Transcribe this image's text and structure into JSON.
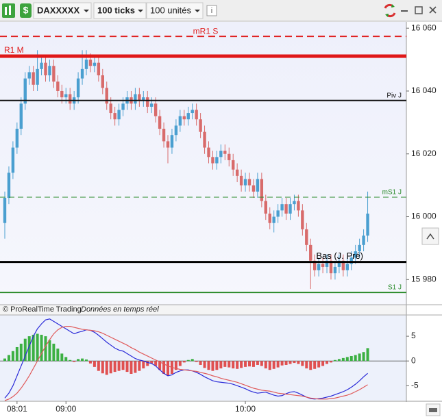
{
  "toolbar": {
    "instrument": "DAXXXXX",
    "interval": "100 ticks",
    "units": "100 unités"
  },
  "footer": {
    "copyright": "© ProRealTime Trading",
    "status": "Données en temps réel"
  },
  "chart_data": [
    {
      "type": "candlestick",
      "ylim": [
        15972,
        16062
      ],
      "yticks": [
        {
          "value": 16060,
          "label": "16 060"
        },
        {
          "value": 16040,
          "label": "16 040"
        },
        {
          "value": 16020,
          "label": "16 020"
        },
        {
          "value": 16000,
          "label": "16 000"
        },
        {
          "value": 15980,
          "label": "15 980"
        }
      ],
      "up_color": "#4a9fd0",
      "down_color": "#d86b6b",
      "open": [
        15998,
        16006,
        16014,
        16022,
        16028,
        16036,
        16044,
        16046,
        16042,
        16047,
        16049,
        16045,
        16048,
        16043,
        16040,
        16038,
        16039,
        16036,
        16038,
        16044,
        16047,
        16050,
        16048,
        16049,
        16045,
        16041,
        16036,
        16033,
        16031,
        16034,
        16036,
        16038,
        16036,
        16039,
        16037,
        16038,
        16035,
        16036,
        16032,
        16028,
        16024,
        16022,
        16026,
        16029,
        16032,
        16031,
        16033,
        16034,
        16031,
        16027,
        16022,
        16019,
        16017,
        16019,
        16021,
        16020,
        16018,
        16015,
        16013,
        16010,
        16012,
        16010,
        16008,
        16012,
        16005,
        16001,
        15998,
        16000,
        16002,
        16004,
        16001,
        16004,
        16005,
        16002,
        15996,
        15991,
        15986,
        15983,
        15985,
        15984,
        15986,
        15982,
        15984,
        15986,
        15983,
        15985,
        15987,
        15989,
        15991,
        15994
      ],
      "high": [
        16008,
        16016,
        16024,
        16030,
        16038,
        16046,
        16048,
        16048,
        16053,
        16051,
        16051,
        16050,
        16050,
        16045,
        16042,
        16041,
        16041,
        16040,
        16046,
        16053,
        16053,
        16052,
        16051,
        16051,
        16047,
        16043,
        16038,
        16035,
        16036,
        16038,
        16040,
        16040,
        16041,
        16041,
        16040,
        16040,
        16038,
        16038,
        16034,
        16030,
        16026,
        16028,
        16031,
        16034,
        16034,
        16035,
        16036,
        16036,
        16033,
        16029,
        16024,
        16021,
        16021,
        16023,
        16023,
        16022,
        16020,
        16017,
        16015,
        16014,
        16014,
        16012,
        16014,
        16014,
        16007,
        16003,
        16002,
        16004,
        16006,
        16006,
        16006,
        16007,
        16007,
        16004,
        15998,
        15993,
        15988,
        15987,
        15987,
        15988,
        15988,
        15986,
        15988,
        15988,
        15987,
        15989,
        15991,
        15993,
        15996,
        16008
      ],
      "low": [
        15993,
        16004,
        16012,
        16020,
        16026,
        16034,
        16042,
        16040,
        16040,
        16045,
        16043,
        16043,
        16041,
        16038,
        16036,
        16036,
        16034,
        16034,
        16036,
        16042,
        16045,
        16046,
        16046,
        16043,
        16039,
        16034,
        16031,
        16029,
        16029,
        16032,
        16034,
        16034,
        16034,
        16035,
        16035,
        16033,
        16033,
        16030,
        16026,
        16022,
        16017,
        16020,
        16024,
        16027,
        16029,
        16029,
        16031,
        16029,
        16025,
        16020,
        16017,
        16015,
        16015,
        16017,
        16018,
        16016,
        16013,
        16011,
        16008,
        16008,
        16008,
        16006,
        16006,
        16003,
        15999,
        15996,
        15995,
        15998,
        16000,
        15999,
        15999,
        16002,
        16000,
        15994,
        15989,
        15977,
        15981,
        15981,
        15982,
        15982,
        15980,
        15980,
        15982,
        15981,
        15981,
        15983,
        15985,
        15987,
        15989,
        15992
      ],
      "close": [
        16006,
        16014,
        16022,
        16028,
        16036,
        16044,
        16046,
        16042,
        16047,
        16049,
        16045,
        16048,
        16043,
        16040,
        16038,
        16039,
        16036,
        16038,
        16044,
        16047,
        16050,
        16048,
        16049,
        16045,
        16041,
        16036,
        16033,
        16031,
        16034,
        16036,
        16038,
        16036,
        16039,
        16037,
        16038,
        16035,
        16036,
        16032,
        16028,
        16024,
        16022,
        16026,
        16029,
        16032,
        16031,
        16033,
        16034,
        16031,
        16027,
        16022,
        16019,
        16017,
        16019,
        16021,
        16020,
        16018,
        16015,
        16013,
        16010,
        16012,
        16010,
        16008,
        16012,
        16005,
        16001,
        15998,
        16000,
        16002,
        16004,
        16001,
        16004,
        16005,
        16002,
        15996,
        15991,
        15986,
        15983,
        15985,
        15984,
        15986,
        15982,
        15984,
        15986,
        15983,
        15985,
        15987,
        15989,
        15991,
        15994,
        16001
      ],
      "levels": [
        {
          "label": "mR1 S",
          "value": 16057.4,
          "color": "#e02020",
          "style": "dashed",
          "width": 2,
          "label_align": "center"
        },
        {
          "label": "R1 M",
          "value": 16051.1,
          "color": "#e01818",
          "style": "solid",
          "width": 5,
          "label_align": "left"
        },
        {
          "label": "Piv J",
          "value": 16037,
          "color": "#111111",
          "style": "solid",
          "width": 2,
          "label_align": "right"
        },
        {
          "label": "mS1 J",
          "value": 16006.2,
          "color": "#2a8a2a",
          "style": "dashed",
          "width": 1,
          "label_align": "right"
        },
        {
          "label": "Bas (J. Pré)",
          "value": 15985.6,
          "color": "#000000",
          "style": "solid",
          "width": 3,
          "label_align": "inner-right"
        },
        {
          "label": "S1 J",
          "value": 15975.9,
          "color": "#2a8a2a",
          "style": "solid",
          "width": 2,
          "label_align": "right"
        }
      ]
    },
    {
      "type": "combo",
      "ylim": [
        -8,
        9.3
      ],
      "yticks": [
        5,
        0,
        -5
      ],
      "categories": [
        null,
        null,
        null,
        "08:01",
        null,
        null,
        null,
        null,
        null,
        null,
        null,
        null,
        null,
        null,
        null,
        "09:00",
        null,
        null,
        null,
        null,
        null,
        null,
        null,
        null,
        null,
        null,
        null,
        null,
        null,
        null,
        null,
        null,
        null,
        null,
        null,
        null,
        null,
        null,
        null,
        null,
        null,
        null,
        null,
        null,
        null,
        null,
        null,
        null,
        null,
        null,
        null,
        null,
        null,
        null,
        null,
        null,
        null,
        null,
        null,
        "10:00",
        null,
        null,
        null,
        null,
        null,
        null,
        null,
        null,
        null,
        null,
        null,
        null,
        null,
        null,
        null,
        null,
        null,
        null,
        null,
        null,
        null,
        null,
        null,
        null,
        null,
        null,
        null,
        null,
        null,
        null
      ],
      "series": [
        {
          "kind": "bar",
          "color_up": "#3cb043",
          "color_down": "#e05050",
          "values": [
            0.5,
            1.2,
            2,
            2.8,
            3.5,
            4.5,
            5,
            5.3,
            5.5,
            5.3,
            5,
            4.2,
            3.5,
            2.5,
            1.5,
            0.8,
            0.2,
            -0.2,
            0.4,
            0.5,
            0.3,
            -0.5,
            -1.2,
            -2,
            -2.5,
            -2.8,
            -2.5,
            -2.2,
            -2,
            -1.8,
            -2.2,
            -2.6,
            -2.4,
            -2,
            -1.5,
            -1,
            -0.5,
            -1,
            -1.8,
            -2.6,
            -3,
            -2.6,
            -1.8,
            -1,
            -0.3,
            0.2,
            0.4,
            -0.2,
            -0.8,
            -1.4,
            -1.8,
            -2,
            -1.8,
            -1.5,
            -1.2,
            -1.3,
            -1.5,
            -1.6,
            -1.4,
            -1.2,
            -1.1,
            -1.2,
            -0.8,
            -1,
            -1.5,
            -1.8,
            -1.6,
            -1.3,
            -0.9,
            -0.8,
            -0.6,
            -0.4,
            -0.6,
            -1,
            -1.5,
            -1.8,
            -1.6,
            -1.3,
            -1,
            -0.6,
            -0.3,
            0.2,
            0.4,
            0.6,
            0.8,
            1,
            1.2,
            1.5,
            1.8,
            2.6
          ]
        },
        {
          "kind": "line",
          "color": "#2a2ad8",
          "values": [
            -7.5,
            -6.5,
            -5,
            -3,
            -1,
            1,
            3,
            5,
            6.5,
            7.5,
            8.3,
            8.5,
            8,
            7.5,
            7,
            6.5,
            6,
            5.5,
            5.8,
            6,
            6.3,
            6.2,
            5.8,
            5.2,
            4.5,
            3.8,
            3.2,
            2.6,
            2.2,
            2,
            1.5,
            1,
            0.5,
            0.2,
            0,
            -0.3,
            -0.5,
            -1,
            -1.8,
            -2.5,
            -3,
            -2.8,
            -2.3,
            -2,
            -1.8,
            -1.8,
            -2,
            -2.3,
            -2.7,
            -3.2,
            -3.6,
            -4,
            -4.2,
            -4.3,
            -4.4,
            -4.5,
            -4.7,
            -5,
            -5.3,
            -5.6,
            -6,
            -6.3,
            -6.5,
            -6.4,
            -6.3,
            -6.6,
            -6.9,
            -7.1,
            -7,
            -6.6,
            -6.3,
            -6.2,
            -6.5,
            -6.9,
            -7.3,
            -7.6,
            -7.7,
            -7.6,
            -7.5,
            -7.3,
            -7.1,
            -6.8,
            -6.5,
            -6.2,
            -5.8,
            -5.3,
            -4.7,
            -4,
            -3.2,
            -2.5
          ]
        },
        {
          "kind": "line",
          "color": "#e05a5a",
          "values": [
            -8,
            -7.7,
            -7.2,
            -6.5,
            -5.5,
            -4.3,
            -3,
            -1.5,
            0,
            1.5,
            3,
            4.3,
            5.5,
            6.3,
            6.8,
            7,
            7,
            6.8,
            6.6,
            6.4,
            6.3,
            6.2,
            6.1,
            5.9,
            5.6,
            5.2,
            4.8,
            4.4,
            4,
            3.6,
            3.2,
            2.7,
            2.3,
            1.8,
            1.4,
            1,
            0.6,
            0.2,
            -0.2,
            -0.6,
            -1,
            -1.3,
            -1.5,
            -1.7,
            -1.8,
            -1.9,
            -2,
            -2.1,
            -2.3,
            -2.5,
            -2.7,
            -3,
            -3.2,
            -3.5,
            -3.7,
            -3.9,
            -4.1,
            -4.3,
            -4.6,
            -4.9,
            -5.2,
            -5.5,
            -5.7,
            -5.9,
            -6,
            -6.1,
            -6.3,
            -6.5,
            -6.6,
            -6.7,
            -6.8,
            -6.9,
            -7,
            -7.1,
            -7.3,
            -7.5,
            -7.6,
            -7.7,
            -7.7,
            -7.7,
            -7.6,
            -7.5,
            -7.3,
            -7.1,
            -6.9,
            -6.6,
            -6.2,
            -5.8,
            -5.3,
            -4.8
          ]
        }
      ]
    }
  ]
}
